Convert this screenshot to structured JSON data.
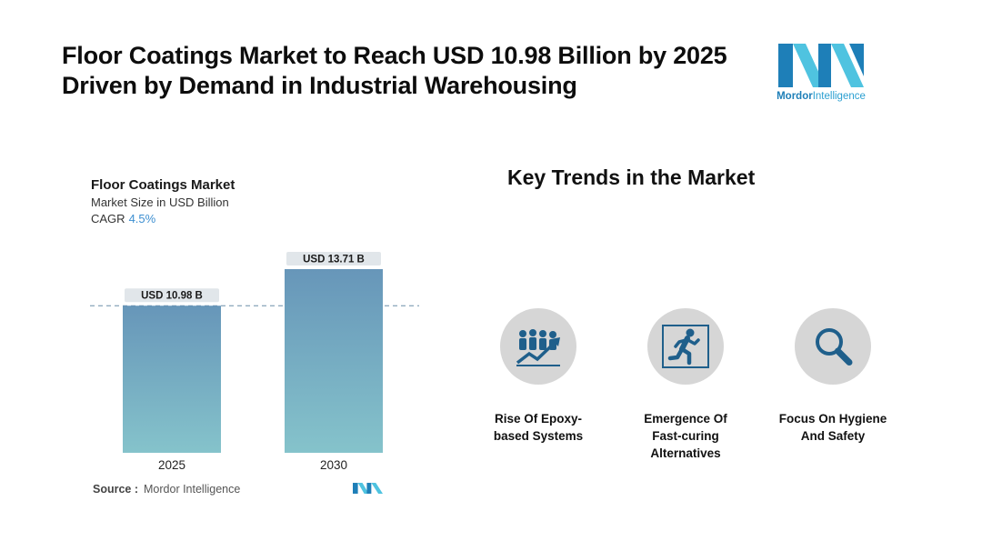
{
  "headline": {
    "line1": "Floor Coatings Market to Reach USD 10.98 Billion by 2025",
    "line2": "Driven by Demand in Industrial Warehousing"
  },
  "brand": {
    "name_bold": "Mordor",
    "name_rest": "Intelligence",
    "colors": {
      "dark": "#1e7fb8",
      "light": "#4fc3e0"
    }
  },
  "chart_data": {
    "type": "bar",
    "title": "Floor Coatings Market",
    "subtitle": "Market Size in USD Billion",
    "cagr_label": "CAGR",
    "cagr_value": "4.5%",
    "categories": [
      "2025",
      "2030"
    ],
    "values": [
      10.98,
      13.71
    ],
    "value_labels": [
      "USD 10.98 B",
      "USD 13.71 B"
    ],
    "ylim": [
      0,
      13.71
    ],
    "grid": false,
    "reference_line": "dashed line at 2025 value",
    "colors": {
      "bar_top": "#6796b9",
      "bar_bottom": "#85c3cb",
      "label_bg": "#e1e6ea"
    }
  },
  "source": {
    "label": "Source :",
    "value": "Mordor Intelligence"
  },
  "trends": {
    "title": "Key Trends in the Market",
    "items": [
      {
        "icon": "growth-people-icon",
        "line1": "Rise Of Epoxy-",
        "line2": "based Systems",
        "line3": ""
      },
      {
        "icon": "running-person-icon",
        "line1": "Emergence Of",
        "line2": "Fast-curing",
        "line3": "Alternatives"
      },
      {
        "icon": "magnifier-icon",
        "line1": "Focus On Hygiene",
        "line2": "And Safety",
        "line3": ""
      }
    ],
    "icon_color": "#1f5f8b"
  }
}
